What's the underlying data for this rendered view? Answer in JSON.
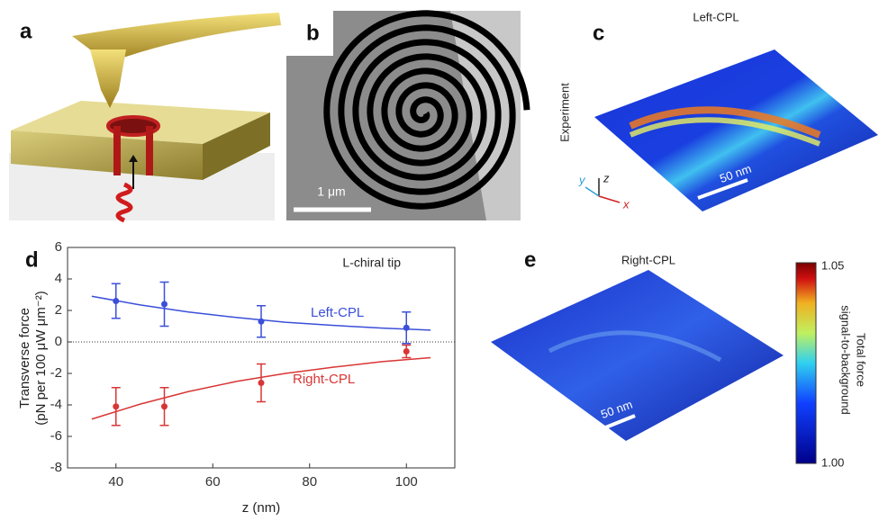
{
  "panels": {
    "a": {
      "label": "a"
    },
    "b": {
      "label": "b",
      "scale_bar": "1 μm"
    },
    "c": {
      "label": "c",
      "title": "Left-CPL",
      "side_label": "Experiment",
      "scale_bar": "50 nm",
      "axes": [
        "x",
        "y",
        "z"
      ]
    },
    "e": {
      "label": "e",
      "title": "Right-CPL",
      "scale_bar": "50 nm"
    },
    "colorbar": {
      "ticks": [
        "1.05",
        "1.00"
      ],
      "title_lines": [
        "Total force",
        "signal-to-background"
      ]
    }
  },
  "chart_data": {
    "type": "scatter",
    "panel_label": "d",
    "annotation": "L-chiral tip",
    "xlabel": "z (nm)",
    "ylabel_lines": [
      "Transverse force",
      "(pN per 100 μW μm⁻²)"
    ],
    "xlim": [
      30,
      110
    ],
    "ylim": [
      -8,
      6
    ],
    "xticks": [
      40,
      60,
      80,
      100
    ],
    "yticks": [
      -8,
      -6,
      -4,
      -2,
      0,
      2,
      4,
      6
    ],
    "series": [
      {
        "name": "Left-CPL",
        "color": "#3b4fd9",
        "x": [
          40,
          50,
          70,
          100
        ],
        "values": [
          2.6,
          2.4,
          1.3,
          0.9
        ],
        "errors": [
          1.1,
          1.4,
          1.0,
          1.0
        ],
        "fit": {
          "x": [
            35,
            45,
            55,
            65,
            75,
            85,
            95,
            105
          ],
          "values": [
            2.9,
            2.35,
            1.9,
            1.55,
            1.25,
            1.05,
            0.88,
            0.75
          ]
        }
      },
      {
        "name": "Right-CPL",
        "color": "#d93535",
        "x": [
          40,
          50,
          70,
          100
        ],
        "values": [
          -4.1,
          -4.1,
          -2.6,
          -0.6
        ],
        "errors": [
          1.2,
          1.2,
          1.2,
          0.4
        ],
        "fit": {
          "x": [
            35,
            45,
            55,
            65,
            75,
            85,
            95,
            105
          ],
          "values": [
            -4.9,
            -3.95,
            -3.15,
            -2.5,
            -2.0,
            -1.6,
            -1.25,
            -1.0
          ]
        }
      }
    ]
  }
}
